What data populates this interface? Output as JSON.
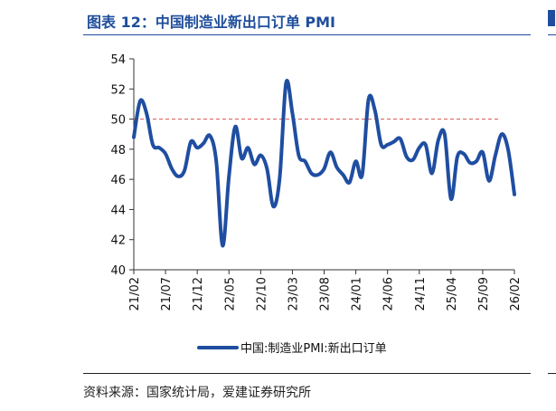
{
  "figure": {
    "title": "图表 12：中国制造业新出口订单 PMI",
    "source": "资料来源：国家统计局，爱建证券研究所"
  },
  "chart_data": {
    "type": "line",
    "title": "图表 12：中国制造业新出口订单 PMI",
    "xlabel": "",
    "ylabel": "",
    "ylim": [
      40,
      54
    ],
    "yticks": [
      40,
      42,
      44,
      46,
      48,
      50,
      52,
      54
    ],
    "xtick_labels": [
      "21/02",
      "21/07",
      "21/12",
      "22/05",
      "22/10",
      "23/03",
      "23/08",
      "24/01",
      "24/06",
      "24/11",
      "25/04",
      "25/09",
      "26/02"
    ],
    "reference_line": {
      "value": 50,
      "style": "dashed",
      "color": "#d9534f"
    },
    "legend_position": "bottom",
    "grid": false,
    "series": [
      {
        "name": "中国:制造业PMI:新出口订单",
        "color": "#1f4ea1",
        "x": [
          "21/02",
          "21/03",
          "21/04",
          "21/05",
          "21/06",
          "21/07",
          "21/08",
          "21/09",
          "21/10",
          "21/11",
          "21/12",
          "22/01",
          "22/02",
          "22/03",
          "22/04",
          "22/05",
          "22/06",
          "22/07",
          "22/08",
          "22/09",
          "22/10",
          "22/11",
          "22/12",
          "23/01",
          "23/02",
          "23/03",
          "23/04",
          "23/05",
          "23/06",
          "23/07",
          "23/08",
          "23/09",
          "23/10",
          "23/11",
          "23/12",
          "24/01",
          "24/02",
          "24/03",
          "24/04",
          "24/05",
          "24/06",
          "24/07",
          "24/08",
          "24/09",
          "24/10",
          "24/11",
          "24/12",
          "25/01",
          "25/02",
          "25/03",
          "25/04",
          "25/05",
          "25/06",
          "25/07",
          "25/08",
          "25/09",
          "25/10",
          "25/11",
          "25/12",
          "26/01",
          "26/02"
        ],
        "values": [
          48.8,
          51.2,
          50.4,
          48.3,
          48.1,
          47.7,
          46.7,
          46.2,
          46.6,
          48.5,
          48.1,
          48.4,
          48.9,
          47.2,
          41.6,
          46.2,
          49.5,
          47.4,
          48.1,
          47.0,
          47.6,
          46.7,
          44.2,
          46.1,
          52.4,
          50.4,
          47.6,
          47.2,
          46.4,
          46.3,
          46.7,
          47.8,
          46.8,
          46.3,
          45.8,
          47.2,
          46.3,
          51.3,
          50.6,
          48.3,
          48.3,
          48.5,
          48.7,
          47.5,
          47.3,
          48.1,
          48.3,
          46.4,
          48.6,
          49.0,
          44.7,
          47.5,
          47.7,
          47.1,
          47.2,
          47.8,
          45.9,
          47.6,
          49.0,
          48.0,
          45.0
        ]
      }
    ]
  }
}
